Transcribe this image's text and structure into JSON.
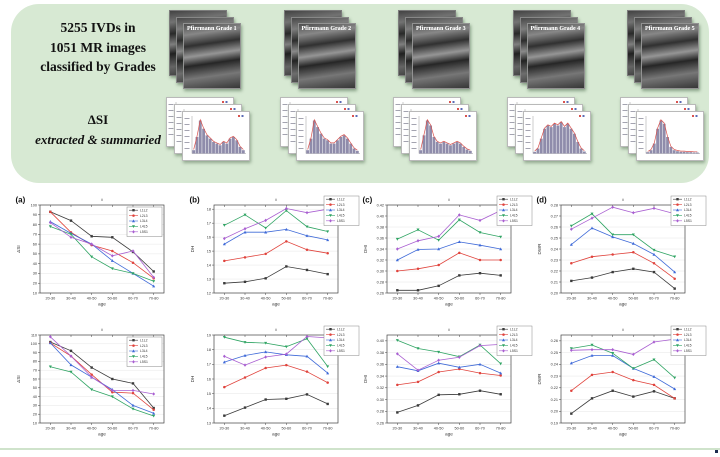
{
  "banner": {
    "bg_color": "#d7e9d3",
    "classification_lines": [
      "5255 IVDs in",
      "1051 MR images",
      "classified by Grades"
    ],
    "extraction_title": "ΔSI",
    "extraction_subtitle": "extracted & summaried",
    "grade_labels": [
      "Pfirrmann Grade 1",
      "Pfirrmann Grade 2",
      "Pfirrmann Grade 3",
      "Pfirrmann Grade 4",
      "Pfirrmann Grade 5"
    ],
    "histograms": {
      "bar_color": "#8f8cab",
      "curve_color": "#d9534f",
      "profiles": [
        [
          0.1,
          0.5,
          1.0,
          0.75,
          0.55,
          0.45,
          0.35,
          0.3,
          0.25,
          0.35,
          0.3,
          0.45,
          0.5,
          0.4,
          0.2,
          0.1
        ],
        [
          0.1,
          0.45,
          1.0,
          0.8,
          0.6,
          0.45,
          0.4,
          0.3,
          0.3,
          0.4,
          0.5,
          0.55,
          0.45,
          0.3,
          0.15,
          0.08
        ],
        [
          0.1,
          0.55,
          1.0,
          0.85,
          0.5,
          0.35,
          0.3,
          0.35,
          0.3,
          0.25,
          0.3,
          0.35,
          0.3,
          0.2,
          0.12,
          0.08
        ],
        [
          0.05,
          0.15,
          0.45,
          0.75,
          0.85,
          0.8,
          0.9,
          0.85,
          0.95,
          0.8,
          0.9,
          0.75,
          0.6,
          0.35,
          0.15,
          0.06
        ],
        [
          0.04,
          0.1,
          0.3,
          0.75,
          1.0,
          0.9,
          0.5,
          0.2,
          0.1,
          0.07,
          0.05,
          0.05,
          0.04,
          0.04,
          0.03,
          0.03
        ]
      ]
    }
  },
  "chart_style": {
    "xlabel": "age",
    "categories": [
      "20-30",
      "30-40",
      "40-50",
      "50-60",
      "60-70",
      "70-80"
    ],
    "series_meta": [
      {
        "name": "L1L2",
        "color": "#3a3a3a",
        "marker": "square"
      },
      {
        "name": "L2L3",
        "color": "#e0433c",
        "marker": "circle"
      },
      {
        "name": "L3L4",
        "color": "#3f6ad8",
        "marker": "triangle"
      },
      {
        "name": "L4L5",
        "color": "#2fa463",
        "marker": "triangle-down"
      },
      {
        "name": "L5S1",
        "color": "#a95fd1",
        "marker": "diamond"
      }
    ],
    "grid_color": "#e6e6e6",
    "axis_color": "#444444"
  },
  "chart_data": [
    {
      "id": "a",
      "type": "line",
      "panel_label": "(a)",
      "title": "ii",
      "ylabel": "ΔSI",
      "ylim": [
        10,
        100
      ],
      "yticks": [
        10,
        20,
        30,
        40,
        50,
        60,
        70,
        80,
        90,
        100
      ],
      "ytick_labels": [
        "10",
        "20",
        "30",
        "40",
        "50",
        "60",
        "70",
        "80",
        "90",
        "100"
      ],
      "legend_pos": "inside",
      "series": [
        {
          "name": "L1L2",
          "values": [
            93,
            84,
            68,
            67,
            52,
            32
          ]
        },
        {
          "name": "L2L3",
          "values": [
            93,
            72,
            59,
            53,
            41,
            25
          ]
        },
        {
          "name": "L3L4",
          "values": [
            83,
            71,
            60,
            43,
            30,
            17
          ]
        },
        {
          "name": "L4L5",
          "values": [
            78,
            70,
            47,
            35,
            30,
            22
          ]
        },
        {
          "name": "L5S1",
          "values": [
            82,
            67,
            60,
            48,
            53,
            26
          ]
        }
      ]
    },
    {
      "id": "b",
      "type": "line",
      "panel_label": "(b)",
      "title": "ii",
      "ylabel": "DH",
      "ylim": [
        12,
        18.3
      ],
      "yticks": [
        12,
        13,
        14,
        15,
        16,
        17,
        18
      ],
      "ytick_labels": [
        "12",
        "13",
        "14",
        "15",
        "16",
        "17",
        "18"
      ],
      "legend_pos": "overlap",
      "series": [
        {
          "name": "L1L2",
          "values": [
            12.7,
            12.8,
            13.05,
            13.9,
            13.65,
            13.35
          ]
        },
        {
          "name": "L2L3",
          "values": [
            14.3,
            14.55,
            14.8,
            15.7,
            15.1,
            14.85
          ]
        },
        {
          "name": "L3L4",
          "values": [
            15.5,
            16.35,
            16.35,
            16.55,
            16.1,
            15.8
          ]
        },
        {
          "name": "L4L5",
          "values": [
            16.85,
            17.6,
            16.65,
            17.9,
            16.75,
            16.4
          ]
        },
        {
          "name": "L5S1",
          "values": [
            15.9,
            16.6,
            17.2,
            18.05,
            17.75,
            18.0
          ]
        }
      ]
    },
    {
      "id": "c",
      "type": "line",
      "panel_label": "(c)",
      "title": "ii",
      "ylabel": "DHI",
      "ylim": [
        0.26,
        0.42
      ],
      "yticks": [
        0.26,
        0.28,
        0.3,
        0.32,
        0.34,
        0.36,
        0.38,
        0.4,
        0.42
      ],
      "ytick_labels": [
        "0.26",
        "0.28",
        "0.30",
        "0.32",
        "0.34",
        "0.36",
        "0.38",
        "0.40",
        "0.42"
      ],
      "legend_pos": "overlap",
      "series": [
        {
          "name": "L1L2",
          "values": [
            0.265,
            0.265,
            0.273,
            0.292,
            0.296,
            0.292
          ]
        },
        {
          "name": "L2L3",
          "values": [
            0.3,
            0.304,
            0.311,
            0.333,
            0.32,
            0.32
          ]
        },
        {
          "name": "L3L4",
          "values": [
            0.32,
            0.339,
            0.34,
            0.353,
            0.347,
            0.34
          ]
        },
        {
          "name": "L4L5",
          "values": [
            0.358,
            0.375,
            0.356,
            0.393,
            0.37,
            0.362
          ]
        },
        {
          "name": "L5S1",
          "values": [
            0.34,
            0.355,
            0.363,
            0.402,
            0.392,
            0.41
          ]
        }
      ]
    },
    {
      "id": "d",
      "type": "line",
      "panel_label": "(d)",
      "title": "ii",
      "ylabel": "DWR",
      "ylim": [
        0.2,
        0.28
      ],
      "yticks": [
        0.2,
        0.21,
        0.22,
        0.23,
        0.24,
        0.25,
        0.26,
        0.27,
        0.28
      ],
      "ytick_labels": [
        "0.20",
        "0.21",
        "0.22",
        "0.23",
        "0.24",
        "0.25",
        "0.26",
        "0.27",
        "0.28"
      ],
      "legend_pos": "overlap",
      "series": [
        {
          "name": "L1L2",
          "values": [
            0.211,
            0.214,
            0.219,
            0.222,
            0.219,
            0.204
          ]
        },
        {
          "name": "L2L3",
          "values": [
            0.227,
            0.233,
            0.235,
            0.237,
            0.227,
            0.213
          ]
        },
        {
          "name": "L3L4",
          "values": [
            0.244,
            0.259,
            0.251,
            0.245,
            0.235,
            0.219
          ]
        },
        {
          "name": "L4L5",
          "values": [
            0.261,
            0.272,
            0.253,
            0.253,
            0.239,
            0.233
          ]
        },
        {
          "name": "L5S1",
          "values": [
            0.258,
            0.268,
            0.278,
            0.273,
            0.277,
            0.272
          ]
        }
      ]
    },
    {
      "id": "e",
      "type": "line",
      "panel_label": "",
      "title": "ii",
      "ylabel": "ΔSI",
      "ylim": [
        10,
        110
      ],
      "yticks": [
        10,
        20,
        30,
        40,
        50,
        60,
        70,
        80,
        90,
        100,
        110
      ],
      "ytick_labels": [
        "10",
        "20",
        "30",
        "40",
        "50",
        "60",
        "70",
        "80",
        "90",
        "100",
        "110"
      ],
      "legend_pos": "inside",
      "series": [
        {
          "name": "L1L2",
          "values": [
            102,
            92,
            73,
            60,
            55,
            27
          ]
        },
        {
          "name": "L2L3",
          "values": [
            101,
            86,
            65,
            45,
            44,
            25
          ]
        },
        {
          "name": "L3L4",
          "values": [
            101,
            76,
            62,
            48,
            30,
            21
          ]
        },
        {
          "name": "L4L5",
          "values": [
            74,
            68,
            48,
            40,
            26,
            18
          ]
        },
        {
          "name": "L5S1",
          "values": [
            108,
            86,
            62,
            47,
            47,
            43
          ]
        }
      ]
    },
    {
      "id": "f",
      "type": "line",
      "panel_label": "",
      "title": "ii",
      "ylabel": "DH",
      "ylim": [
        13,
        19
      ],
      "yticks": [
        13,
        14,
        15,
        16,
        17,
        18,
        19
      ],
      "ytick_labels": [
        "13",
        "14",
        "15",
        "16",
        "17",
        "18",
        "19"
      ],
      "legend_pos": "overlap",
      "series": [
        {
          "name": "L1L2",
          "values": [
            13.5,
            14.05,
            14.6,
            14.65,
            14.95,
            14.3
          ]
        },
        {
          "name": "L2L3",
          "values": [
            15.45,
            16.1,
            16.75,
            16.95,
            16.5,
            15.75
          ]
        },
        {
          "name": "L3L4",
          "values": [
            17.15,
            17.6,
            17.85,
            17.65,
            17.55,
            16.4
          ]
        },
        {
          "name": "L4L5",
          "values": [
            18.85,
            18.5,
            18.45,
            18.2,
            18.75,
            16.85
          ]
        },
        {
          "name": "L5S1",
          "values": [
            17.55,
            16.95,
            17.5,
            17.7,
            18.9,
            18.8
          ]
        }
      ]
    },
    {
      "id": "g",
      "type": "line",
      "panel_label": "",
      "title": "ii",
      "ylabel": "DHI",
      "ylim": [
        0.26,
        0.41
      ],
      "yticks": [
        0.26,
        0.28,
        0.3,
        0.32,
        0.34,
        0.36,
        0.38,
        0.4
      ],
      "ytick_labels": [
        "0.26",
        "0.28",
        "0.30",
        "0.32",
        "0.34",
        "0.36",
        "0.38",
        "0.40"
      ],
      "legend_pos": "overlap",
      "series": [
        {
          "name": "L1L2",
          "values": [
            0.278,
            0.29,
            0.308,
            0.309,
            0.315,
            0.309
          ]
        },
        {
          "name": "L2L3",
          "values": [
            0.325,
            0.33,
            0.347,
            0.352,
            0.345,
            0.341
          ]
        },
        {
          "name": "L3L4",
          "values": [
            0.356,
            0.349,
            0.362,
            0.355,
            0.36,
            0.345
          ]
        },
        {
          "name": "L4L5",
          "values": [
            0.401,
            0.387,
            0.381,
            0.373,
            0.393,
            0.361
          ]
        },
        {
          "name": "L5S1",
          "values": [
            0.378,
            0.35,
            0.367,
            0.372,
            0.392,
            0.394
          ]
        }
      ]
    },
    {
      "id": "h",
      "type": "line",
      "panel_label": "",
      "title": "ii",
      "ylabel": "DWR",
      "ylim": [
        0.19,
        0.265
      ],
      "yticks": [
        0.19,
        0.2,
        0.21,
        0.22,
        0.23,
        0.24,
        0.25,
        0.26
      ],
      "ytick_labels": [
        "0.19",
        "0.20",
        "0.21",
        "0.22",
        "0.23",
        "0.24",
        "0.25",
        "0.26"
      ],
      "legend_pos": "overlap",
      "series": [
        {
          "name": "L1L2",
          "values": [
            0.198,
            0.211,
            0.2175,
            0.2125,
            0.217,
            0.211
          ]
        },
        {
          "name": "L2L3",
          "values": [
            0.2175,
            0.231,
            0.2335,
            0.2265,
            0.2225,
            0.211
          ]
        },
        {
          "name": "L3L4",
          "values": [
            0.241,
            0.2475,
            0.2475,
            0.2365,
            0.2295,
            0.219
          ]
        },
        {
          "name": "L4L5",
          "values": [
            0.2535,
            0.2565,
            0.2495,
            0.2365,
            0.244,
            0.2285
          ]
        },
        {
          "name": "L5S1",
          "values": [
            0.252,
            0.2525,
            0.2525,
            0.2485,
            0.259,
            0.2615
          ]
        }
      ]
    }
  ],
  "footer": {
    "line_color": "#cfe3cb"
  }
}
